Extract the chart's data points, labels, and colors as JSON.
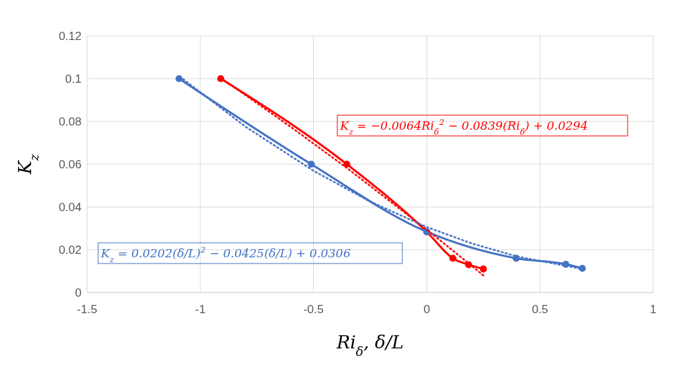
{
  "chart_data": {
    "type": "line",
    "xlabel": "Ri$_{δ}$, δ/L",
    "ylabel": "K$_{z}$",
    "xlim": [
      -1.5,
      1
    ],
    "xticks": [
      -1.5,
      -1,
      -0.5,
      0,
      0.5,
      1
    ],
    "ylim": [
      0,
      0.12
    ],
    "yticks": [
      0,
      0.02,
      0.04,
      0.06,
      0.08,
      0.1,
      0.12
    ],
    "grid": true,
    "series": [
      {
        "color": "#ff0000",
        "marker": "circle",
        "line_style": "solid",
        "x": [
          -0.91,
          -0.353,
          0,
          0.115,
          0.185,
          0.25
        ],
        "values": [
          0.1,
          0.06,
          0.0284,
          0.016,
          0.013,
          0.011
        ]
      },
      {
        "color": "#4472c4",
        "marker": "circle",
        "line_style": "solid",
        "x": [
          -1.094,
          -0.51,
          0,
          0.395,
          0.614,
          0.687
        ],
        "values": [
          0.1,
          0.06,
          0.0284,
          0.016,
          0.0132,
          0.0113
        ]
      },
      {
        "color": "#ff0000",
        "marker": "none",
        "line_style": "dotted",
        "x": [
          -0.91,
          -0.6,
          -0.35,
          0,
          0.12,
          0.25
        ],
        "values": [
          0.1004,
          0.0774,
          0.058,
          0.0294,
          0.0192,
          0.008
        ]
      },
      {
        "color": "#4472c4",
        "marker": "none",
        "line_style": "dotted",
        "x": [
          -1.09,
          -0.8,
          -0.5,
          -0.25,
          0,
          0.2,
          0.4,
          0.69
        ],
        "values": [
          0.1009,
          0.0775,
          0.0569,
          0.0425,
          0.0306,
          0.0229,
          0.0168,
          0.0109
        ]
      }
    ],
    "annotations": [
      "K$_{z}$ = −0.0064Ri$_{δ}$$^{2}$ − 0.0839(Ri$_{δ}$) + 0.0294",
      "K$_{z}$ = 0.0202(δ/L)$^{2}$ − 0.0425(δ/L) + 0.0306"
    ]
  }
}
